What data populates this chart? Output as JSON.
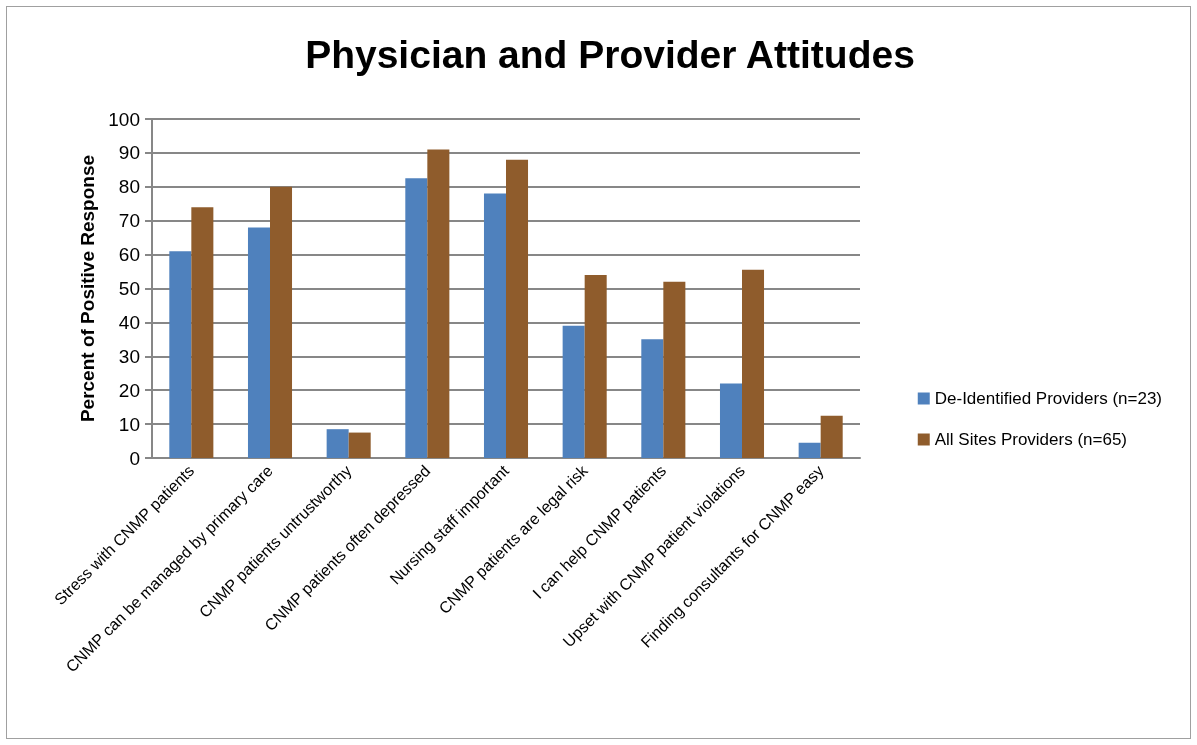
{
  "chart_data": {
    "type": "bar",
    "title": "Physician and Provider Attitudes",
    "ylabel": "Percent of Positive Response",
    "categories": [
      "Stress with CNMP patients",
      "CNMP can be managed by primary care",
      "CNMP patients untrustworthy",
      "CNMP patients often depressed",
      "Nursing staff important",
      "CNMP patients are legal risk",
      "I can help CNMP patients",
      "Upset with CNMP patient violations",
      "Finding consultants for CNMP easy"
    ],
    "series": [
      {
        "name": "De-Identified Providers (n=23)",
        "color": "#4f81bd",
        "values": [
          61,
          68,
          8.5,
          82.5,
          78,
          39,
          35,
          22,
          4.5
        ]
      },
      {
        "name": "All Sites Providers (n=65)",
        "color": "#8f5c2c",
        "values": [
          74,
          80,
          7.5,
          91,
          88,
          54,
          52,
          55.5,
          12.5
        ]
      }
    ],
    "ylim": [
      0,
      100
    ],
    "yticks": [
      0,
      10,
      20,
      30,
      40,
      50,
      60,
      70,
      80,
      90,
      100
    ],
    "grid": "y",
    "legend": "right"
  }
}
